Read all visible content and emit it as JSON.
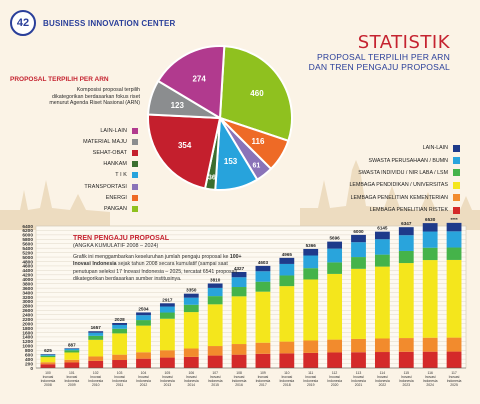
{
  "header": {
    "page_number": "42",
    "title": "BUSINESS INNOVATION CENTER"
  },
  "statistik": {
    "title": "STATISTIK",
    "subtitle_line1": "PROPOSAL TERPILIH PER ARN",
    "subtitle_line2": "DAN TREN PENGAJU PROPOSAL"
  },
  "left_panel": {
    "title": "PROPOSAL TERPILIH PER ARN",
    "description": "Komposisi proposal terpilih dikategorikan berdasarkan fokus riset menurut Agenda Riset Nasional (ARN)"
  },
  "chart_data": [
    {
      "type": "pie",
      "title": "PROPOSAL TERPILIH PER ARN",
      "slices": [
        {
          "label": "PANGAN",
          "value": 460,
          "color": "#8fc11f"
        },
        {
          "label": "ENERGI",
          "value": 116,
          "color": "#ee6a26"
        },
        {
          "label": "TRANSPORTASI",
          "value": 61,
          "color": "#8a73b8"
        },
        {
          "label": "T I K",
          "value": 153,
          "color": "#27a3dc"
        },
        {
          "label": "HANKAM",
          "value": 36,
          "color": "#3b6e2f"
        },
        {
          "label": "SEHAT-OBAT",
          "value": 354,
          "color": "#c41f2d"
        },
        {
          "label": "MATERIAL MAJU",
          "value": 123,
          "color": "#8b8d8f"
        },
        {
          "label": "LAIN-LAIN",
          "value": 274,
          "color": "#b13a8e"
        }
      ],
      "legend_order": [
        "LAIN-LAIN",
        "MATERIAL MAJU",
        "SEHAT-OBAT",
        "HANKAM",
        "T I K",
        "TRANSPORTASI",
        "ENERGI",
        "PANGAN"
      ],
      "legend_placement": "left"
    },
    {
      "type": "bar",
      "stacked": true,
      "title": "TREN PENGAJU PROPOSAL",
      "subtitle": "(ANGKA KUMULATIF 2008 – 2024)",
      "description_pre": "Grafik ini menggambarkan keseluruhan jumlah pengaju proposal ke ",
      "description_bold": "100+ Inovasi Indonesia",
      "description_post": " sejak tahun 2008 secara kumulatif (sampai saat penutupan seleksi 17 Inovasi Indonesia – 2025, tercatat 6541 proposal), dikategorikan berdasarkan sumber institusinya.",
      "categories": [
        "100 Inovasi Indonesia 2008",
        "101 Inovasi Indonesia 2009",
        "102 Inovasi Indonesia 2010",
        "103 Inovasi Indonesia 2011",
        "104 Inovasi Indonesia 2012",
        "105 Inovasi Indonesia 2013",
        "106 Inovasi Indonesia 2014",
        "107 Inovasi Indonesia 2015",
        "108 Inovasi Indonesia 2016",
        "109 Inovasi Indonesia 2017",
        "110 Inovasi Indonesia 2018",
        "111 Inovasi Indonesia 2019",
        "112 Inovasi Indonesia 2020",
        "113 Inovasi Indonesia 2021",
        "114 Inovasi Indonesia 2022",
        "115 Inovasi Indonesia 2023",
        "116 Inovasi Indonesia 2024",
        "117 Inovasi Indonesia 2025"
      ],
      "totals": [
        625,
        887,
        1657,
        2028,
        2504,
        2917,
        3350,
        3810,
        4327,
        4603,
        4965,
        5366,
        5696,
        6000,
        6145,
        6347,
        6530,
        6541
      ],
      "total_labels": [
        "625",
        "887",
        "1657",
        "2028",
        "2504",
        "2917",
        "3350",
        "3810",
        "4327",
        "4603",
        "4965",
        "5366",
        "5696",
        "6000",
        "6145",
        "6347",
        "6530",
        "****"
      ],
      "series": [
        {
          "name": "LEMBAGA PENELITIAN RISTEK",
          "color": "#d42a2a",
          "values": [
            170,
            250,
            320,
            360,
            420,
            470,
            500,
            560,
            600,
            640,
            660,
            680,
            700,
            710,
            720,
            730,
            735,
            740
          ]
        },
        {
          "name": "LEMBAGA PENELITIAN KEMENTERIAN",
          "color": "#f28b2d",
          "values": [
            90,
            120,
            200,
            240,
            290,
            330,
            380,
            430,
            480,
            500,
            530,
            560,
            580,
            600,
            610,
            620,
            630,
            630
          ]
        },
        {
          "name": "LEMBAGA PENDIDIKAN / UNIVERSITAS",
          "color": "#f4e61c",
          "values": [
            230,
            330,
            750,
            960,
            1200,
            1420,
            1640,
            1880,
            2150,
            2300,
            2500,
            2750,
            2960,
            3160,
            3240,
            3380,
            3500,
            3500
          ]
        },
        {
          "name": "SWASTA INDIVIDU / NIR LABA / LSM",
          "color": "#45b34a",
          "values": [
            60,
            100,
            180,
            210,
            250,
            280,
            330,
            370,
            420,
            450,
            480,
            510,
            520,
            530,
            540,
            545,
            555,
            560
          ]
        },
        {
          "name": "SWASTA PERUSAHAAN / BUMN",
          "color": "#29a4dc",
          "values": [
            50,
            60,
            140,
            170,
            220,
            270,
            320,
            370,
            440,
            470,
            520,
            570,
            620,
            670,
            695,
            710,
            730,
            730
          ]
        },
        {
          "name": "LAIN-LAIN",
          "color": "#1e3a8a",
          "values": [
            25,
            27,
            67,
            88,
            124,
            147,
            180,
            200,
            237,
            243,
            275,
            296,
            316,
            330,
            340,
            362,
            380,
            381
          ]
        }
      ],
      "legend_order": [
        "LAIN-LAIN",
        "SWASTA PERUSAHAAN / BUMN",
        "SWASTA INDIVIDU / NIR LABA / LSM",
        "LEMBAGA PENDIDIKAN / UNIVERSITAS",
        "LEMBAGA PENELITIAN KEMENTERIAN",
        "LEMBAGA PENELITIAN RISTEK"
      ],
      "legend_placement": "top-right",
      "ylim": [
        0,
        6400
      ],
      "yticks": [
        0,
        200,
        400,
        600,
        800,
        1000,
        1200,
        1400,
        1600,
        1800,
        2000,
        2200,
        2400,
        2600,
        2800,
        3000,
        3200,
        3400,
        3600,
        3800,
        4000,
        4200,
        4400,
        4600,
        4800,
        5000,
        5200,
        5400,
        5600,
        5800,
        6000,
        6200,
        6400
      ],
      "grid": true
    }
  ]
}
